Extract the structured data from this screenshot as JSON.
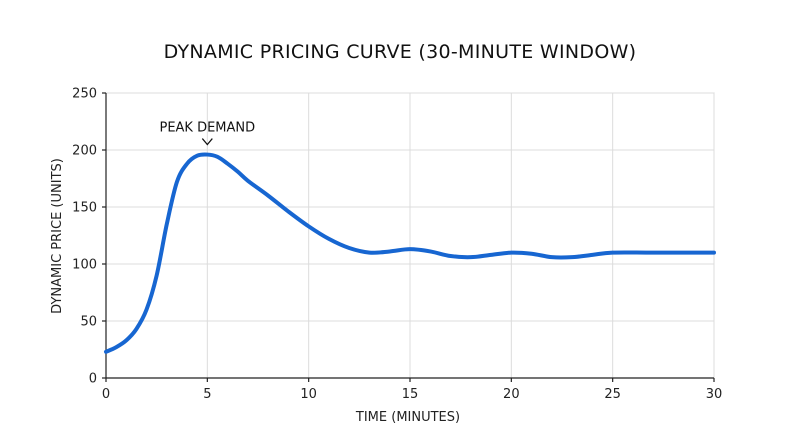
{
  "chart_data": {
    "type": "line",
    "title": "DYNAMIC PRICING CURVE (30-MINUTE WINDOW)",
    "xlabel": "TIME (MINUTES)",
    "ylabel": "DYNAMIC PRICE (UNITS)",
    "xlim": [
      0,
      30
    ],
    "ylim": [
      0,
      250
    ],
    "xticks": [
      0,
      5,
      10,
      15,
      20,
      25,
      30
    ],
    "yticks": [
      0,
      50,
      100,
      150,
      200,
      250
    ],
    "grid": true,
    "annotations": [
      {
        "text": "PEAK DEMAND",
        "x": 5,
        "y": 196
      }
    ],
    "series": [
      {
        "color": "#1766d1",
        "points": [
          [
            0,
            23
          ],
          [
            0.5,
            27
          ],
          [
            1,
            33
          ],
          [
            1.5,
            43
          ],
          [
            2,
            60
          ],
          [
            2.5,
            90
          ],
          [
            3,
            135
          ],
          [
            3.5,
            172
          ],
          [
            4,
            188
          ],
          [
            4.5,
            195
          ],
          [
            5,
            196
          ],
          [
            5.5,
            194
          ],
          [
            6,
            188
          ],
          [
            6.5,
            181
          ],
          [
            7,
            173
          ],
          [
            8,
            160
          ],
          [
            9,
            146
          ],
          [
            10,
            133
          ],
          [
            11,
            122
          ],
          [
            12,
            114
          ],
          [
            13,
            110
          ],
          [
            14,
            111
          ],
          [
            15,
            113
          ],
          [
            16,
            111
          ],
          [
            17,
            107
          ],
          [
            18,
            106
          ],
          [
            19,
            108
          ],
          [
            20,
            110
          ],
          [
            21,
            109
          ],
          [
            22,
            106
          ],
          [
            23,
            106
          ],
          [
            24,
            108
          ],
          [
            25,
            110
          ],
          [
            27,
            110
          ],
          [
            30,
            110
          ]
        ]
      }
    ]
  }
}
